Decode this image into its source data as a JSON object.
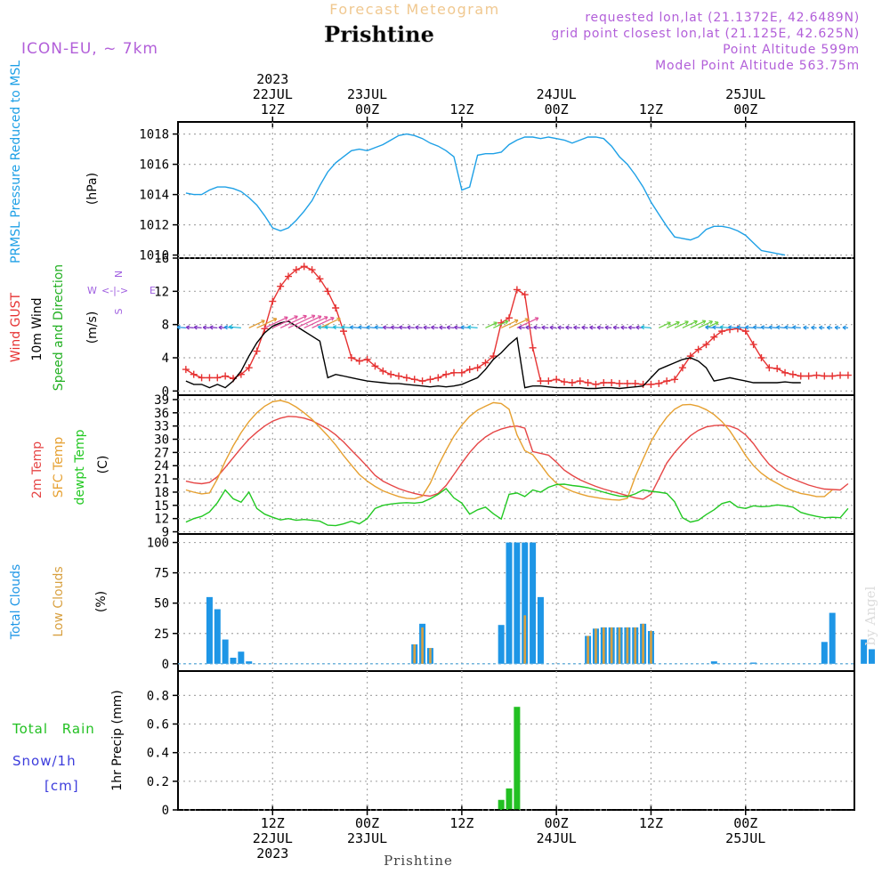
{
  "header": {
    "subtitle": "Forecast Meteogram",
    "location": "Prishtine",
    "model": "ICON-EU, ~ 7km",
    "requested": "requested lon,lat (21.1372E, 42.6489N)",
    "grid_point": "grid point closest lon,lat (21.125E, 42.625N)",
    "point_altitude": "Point Altitude 599m",
    "model_altitude": "Model Point Altitude 563.75m"
  },
  "footer": {
    "location": "Prishtine",
    "watermark": "by Angel"
  },
  "colors": {
    "pressure": "#1ea0e6",
    "gust": "#e63232",
    "wind": "#000000",
    "wind_label": "#22b022",
    "temp": "#e64646",
    "sfc": "#e6a030",
    "dewpt": "#22c822",
    "total_cloud": "#1e96e6",
    "low_cloud": "#d8a040",
    "rain": "#22c022",
    "snow_label": "#3c3cdc",
    "title_purple": "#b25fd9",
    "subtitle": "#f0c890",
    "compass": "#a060e0"
  },
  "time_axis": {
    "top_labels": [
      {
        "hour": 12,
        "lines": [
          "2023",
          "22JUL",
          "12Z"
        ]
      },
      {
        "hour": 24,
        "lines": [
          "23JUL",
          "00Z"
        ]
      },
      {
        "hour": 36,
        "lines": [
          "12Z"
        ]
      },
      {
        "hour": 48,
        "lines": [
          "24JUL",
          "00Z"
        ]
      },
      {
        "hour": 60,
        "lines": [
          "12Z"
        ]
      },
      {
        "hour": 72,
        "lines": [
          "25JUL",
          "00Z"
        ]
      }
    ],
    "bottom_labels": [
      {
        "hour": 12,
        "lines": [
          "12Z",
          "22JUL",
          "2023"
        ]
      },
      {
        "hour": 24,
        "lines": [
          "00Z",
          "23JUL"
        ]
      },
      {
        "hour": 36,
        "lines": [
          "12Z"
        ]
      },
      {
        "hour": 48,
        "lines": [
          "00Z",
          "24JUL"
        ]
      },
      {
        "hour": 60,
        "lines": [
          "12Z"
        ]
      },
      {
        "hour": 72,
        "lines": [
          "00Z",
          "25JUL"
        ]
      }
    ]
  },
  "chart_data": [
    {
      "type": "line",
      "title": "PRMSL Pressure Reduced to MSL",
      "ylabel": "(hPa)",
      "ylim": [
        1009.8,
        1018.8
      ],
      "yticks": [
        1010,
        1012,
        1014,
        1016,
        1018
      ],
      "x_hours_start": 1,
      "x_step_hours": 1,
      "series": [
        {
          "name": "PRMSL",
          "values": [
            1014.1,
            1014.0,
            1014.0,
            1014.3,
            1014.5,
            1014.5,
            1014.4,
            1014.2,
            1013.8,
            1013.3,
            1012.6,
            1011.8,
            1011.6,
            1011.8,
            1012.3,
            1012.9,
            1013.6,
            1014.6,
            1015.5,
            1016.1,
            1016.5,
            1016.9,
            1017.0,
            1016.9,
            1017.1,
            1017.3,
            1017.6,
            1017.9,
            1018.0,
            1017.9,
            1017.7,
            1017.4,
            1017.2,
            1016.9,
            1016.5,
            1014.3,
            1014.5,
            1016.6,
            1016.7,
            1016.7,
            1016.8,
            1017.3,
            1017.6,
            1017.8,
            1017.8,
            1017.7,
            1017.8,
            1017.7,
            1017.6,
            1017.4,
            1017.6,
            1017.8,
            1017.8,
            1017.7,
            1017.2,
            1016.5,
            1016.0,
            1015.3,
            1014.5,
            1013.5,
            1012.7,
            1011.9,
            1011.2,
            1011.1,
            1011.0,
            1011.2,
            1011.7,
            1011.9,
            1011.9,
            1011.8,
            1011.6,
            1011.3,
            1010.8,
            1010.3,
            1010.2,
            1010.1,
            1010.0
          ]
        }
      ]
    },
    {
      "type": "line",
      "title": "Wind GUST / 10m Wind Speed and Direction",
      "ylabel": "(m/s)",
      "ylim": [
        -0.5,
        16
      ],
      "yticks": [
        0,
        4,
        8,
        12,
        16
      ],
      "compass": {
        "w": "W",
        "e": "E",
        "n": "N",
        "s": "S"
      },
      "x_hours_start": 1,
      "x_step_hours": 1,
      "series": [
        {
          "name": "Wind GUST",
          "values": [
            2.6,
            2.0,
            1.6,
            1.6,
            1.6,
            1.8,
            1.5,
            2.0,
            2.8,
            4.8,
            7.5,
            10.8,
            12.6,
            13.8,
            14.6,
            15.0,
            14.6,
            13.5,
            12.0,
            10.0,
            7.2,
            4.0,
            3.6,
            3.8,
            3.0,
            2.4,
            2.0,
            1.8,
            1.6,
            1.4,
            1.2,
            1.4,
            1.6,
            2.0,
            2.2,
            2.2,
            2.6,
            2.8,
            3.4,
            4.2,
            8.2,
            8.8,
            12.2,
            11.6,
            5.2,
            1.2,
            1.2,
            1.4,
            1.1,
            1.0,
            1.2,
            1.0,
            0.8,
            1.0,
            1.0,
            0.9,
            0.9,
            0.9,
            0.8,
            0.8,
            0.9,
            1.2,
            1.4,
            2.8,
            4.2,
            5.0,
            5.6,
            6.5,
            7.2,
            7.4,
            7.5,
            7.2,
            5.6,
            4.0,
            2.8,
            2.7,
            2.2,
            2.0,
            1.8,
            1.8,
            1.9,
            1.8,
            1.8,
            1.9,
            1.9
          ]
        },
        {
          "name": "10m Wind Speed",
          "values": [
            1.2,
            0.8,
            0.8,
            0.4,
            0.8,
            0.4,
            1.2,
            2.4,
            4.2,
            5.8,
            7.0,
            7.8,
            8.2,
            8.4,
            7.8,
            7.2,
            6.6,
            6.0,
            1.6,
            2.0,
            1.8,
            1.6,
            1.4,
            1.2,
            1.1,
            1.0,
            0.9,
            0.9,
            0.8,
            0.7,
            0.6,
            0.5,
            0.6,
            0.5,
            0.6,
            0.8,
            1.2,
            1.6,
            2.6,
            3.8,
            4.6,
            5.6,
            6.4,
            0.4,
            0.6,
            0.6,
            0.5,
            0.4,
            0.4,
            0.4,
            0.4,
            0.3,
            0.3,
            0.4,
            0.4,
            0.3,
            0.4,
            0.5,
            0.6,
            1.6,
            2.6,
            3.0,
            3.4,
            3.8,
            4.0,
            3.6,
            2.8,
            1.2,
            1.4,
            1.6,
            1.4,
            1.2,
            1.0,
            1.0,
            1.0,
            1.0,
            1.1,
            1.0,
            1.0
          ]
        }
      ]
    },
    {
      "type": "line",
      "title": "2m Temp / SFC Temp / dewpt Temp",
      "ylabel": "(C)",
      "ylim": [
        8.5,
        40
      ],
      "yticks": [
        9,
        12,
        15,
        18,
        21,
        24,
        27,
        30,
        33,
        36,
        39
      ],
      "x_hours_start": 1,
      "x_step_hours": 1,
      "series": [
        {
          "name": "2m Temp",
          "values": [
            20.5,
            20.1,
            19.9,
            20.2,
            21.5,
            23.6,
            25.8,
            28.0,
            30.0,
            31.6,
            33.0,
            34.1,
            34.8,
            35.2,
            35.1,
            34.8,
            34.2,
            33.3,
            32.3,
            31.0,
            29.4,
            27.5,
            25.7,
            23.8,
            21.8,
            20.5,
            19.6,
            18.8,
            18.2,
            17.7,
            17.3,
            17.1,
            17.7,
            19.5,
            22.0,
            24.6,
            27.0,
            29.0,
            30.5,
            31.6,
            32.3,
            32.8,
            33.0,
            32.5,
            27.2,
            26.8,
            26.4,
            24.8,
            23.0,
            21.8,
            20.8,
            20.0,
            19.3,
            18.7,
            18.2,
            17.7,
            17.2,
            16.7,
            16.4,
            17.5,
            21.0,
            24.6,
            27.0,
            29.0,
            30.8,
            32.0,
            32.8,
            33.1,
            33.2,
            33.0,
            32.3,
            31.0,
            29.0,
            26.5,
            24.3,
            22.8,
            21.8,
            21.0,
            20.3,
            19.6,
            19.1,
            18.7,
            18.6,
            18.5,
            19.9
          ]
        },
        {
          "name": "SFC Temp",
          "values": [
            18.5,
            18.0,
            17.6,
            17.8,
            21.0,
            25.0,
            28.5,
            31.5,
            34.0,
            36.0,
            37.5,
            38.5,
            38.8,
            38.3,
            37.3,
            36.0,
            34.5,
            32.7,
            30.8,
            28.7,
            26.3,
            24.1,
            22.0,
            20.5,
            19.3,
            18.3,
            17.6,
            17.0,
            16.6,
            16.5,
            17.1,
            20.0,
            24.0,
            27.5,
            30.7,
            33.2,
            35.2,
            36.6,
            37.5,
            38.3,
            38.1,
            36.8,
            31.0,
            27.4,
            26.5,
            24.2,
            21.8,
            20.0,
            19.0,
            18.2,
            17.6,
            17.1,
            16.8,
            16.5,
            16.3,
            16.2,
            16.6,
            21.5,
            25.5,
            29.5,
            32.5,
            35.0,
            36.8,
            37.8,
            37.9,
            37.5,
            36.7,
            35.6,
            34.0,
            31.9,
            29.2,
            26.3,
            24.0,
            22.3,
            21.0,
            20.0,
            19.0,
            18.3,
            17.7,
            17.4,
            17.0,
            17.0,
            18.5
          ]
        },
        {
          "name": "dewpt Temp",
          "values": [
            11.2,
            12.0,
            12.5,
            13.5,
            15.6,
            18.5,
            16.5,
            15.7,
            18.0,
            14.3,
            13.0,
            12.3,
            11.7,
            12.0,
            11.6,
            11.8,
            11.6,
            11.4,
            10.5,
            10.4,
            10.8,
            11.4,
            10.8,
            12.0,
            14.3,
            15.0,
            15.3,
            15.5,
            15.6,
            15.5,
            15.7,
            16.5,
            17.5,
            18.8,
            16.7,
            15.5,
            13.0,
            14.0,
            14.6,
            13.1,
            11.9,
            17.5,
            17.8,
            17.0,
            18.5,
            18.0,
            19.1,
            19.7,
            19.8,
            19.5,
            19.3,
            19.0,
            18.5,
            18.0,
            17.5,
            17.1,
            17.0,
            17.6,
            18.5,
            18.2,
            18.0,
            17.7,
            15.8,
            12.2,
            11.2,
            11.6,
            12.9,
            14.0,
            15.4,
            15.9,
            14.6,
            14.3,
            14.9,
            14.7,
            14.8,
            15.1,
            14.9,
            14.6,
            13.4,
            12.9,
            12.5,
            12.2,
            12.3,
            12.2,
            14.3
          ]
        }
      ]
    },
    {
      "type": "bar",
      "title": "Total Clouds / Low Clouds",
      "ylabel": "(%)",
      "ylim": [
        -6,
        107
      ],
      "yticks": [
        0,
        25,
        50,
        75,
        100
      ],
      "x_hours_start": 1,
      "x_step_hours": 1,
      "series": [
        {
          "name": "Total Clouds",
          "values": [
            0,
            0,
            0,
            55,
            45,
            20,
            5,
            10,
            2,
            0,
            0,
            0,
            0,
            0,
            0,
            0,
            0,
            0,
            0,
            0,
            0,
            0,
            0,
            0,
            0,
            0,
            0,
            0,
            0,
            16,
            33,
            13,
            0,
            0,
            0,
            0,
            0,
            0,
            0,
            0,
            32,
            100,
            100,
            100,
            100,
            55,
            0,
            0,
            0,
            0,
            0,
            23,
            29,
            30,
            30,
            30,
            30,
            30,
            33,
            27,
            0,
            0,
            0,
            0,
            0,
            0,
            0,
            2,
            0,
            0,
            0,
            0,
            1,
            0,
            0,
            0,
            0,
            0,
            0,
            0,
            0,
            18,
            42,
            0,
            0,
            0,
            20,
            12
          ]
        },
        {
          "name": "Low Clouds",
          "values": [
            0,
            0,
            0,
            0,
            0,
            0,
            0,
            0,
            0,
            0,
            0,
            0,
            0,
            0,
            0,
            0,
            0,
            0,
            0,
            0,
            0,
            0,
            0,
            0,
            0,
            0,
            0,
            0,
            0,
            16,
            30,
            13,
            0,
            0,
            0,
            0,
            0,
            0,
            0,
            0,
            0,
            0,
            0,
            40,
            0,
            0,
            0,
            0,
            0,
            0,
            0,
            23,
            29,
            30,
            30,
            30,
            30,
            30,
            33,
            27,
            0,
            0,
            0,
            0,
            0,
            0,
            0,
            0,
            0,
            0,
            0,
            0,
            0,
            0,
            0,
            0,
            0,
            0,
            0,
            0,
            0,
            0,
            0,
            0,
            0,
            0,
            0,
            0
          ]
        }
      ]
    },
    {
      "type": "bar",
      "title": "1hr Precip (mm)",
      "labels": {
        "rain": "Total Rain",
        "snow": "Snow/1h",
        "snow_unit": "[cm]"
      },
      "ylabel": "1hr Precip (mm)",
      "ylim": [
        0,
        0.97
      ],
      "yticks": [
        0,
        0.2,
        0.4,
        0.6,
        0.8
      ],
      "series": [
        {
          "name": "Total Rain",
          "x_hours": [
            41,
            42,
            43
          ],
          "values": [
            0.07,
            0.15,
            0.72
          ]
        }
      ]
    }
  ]
}
